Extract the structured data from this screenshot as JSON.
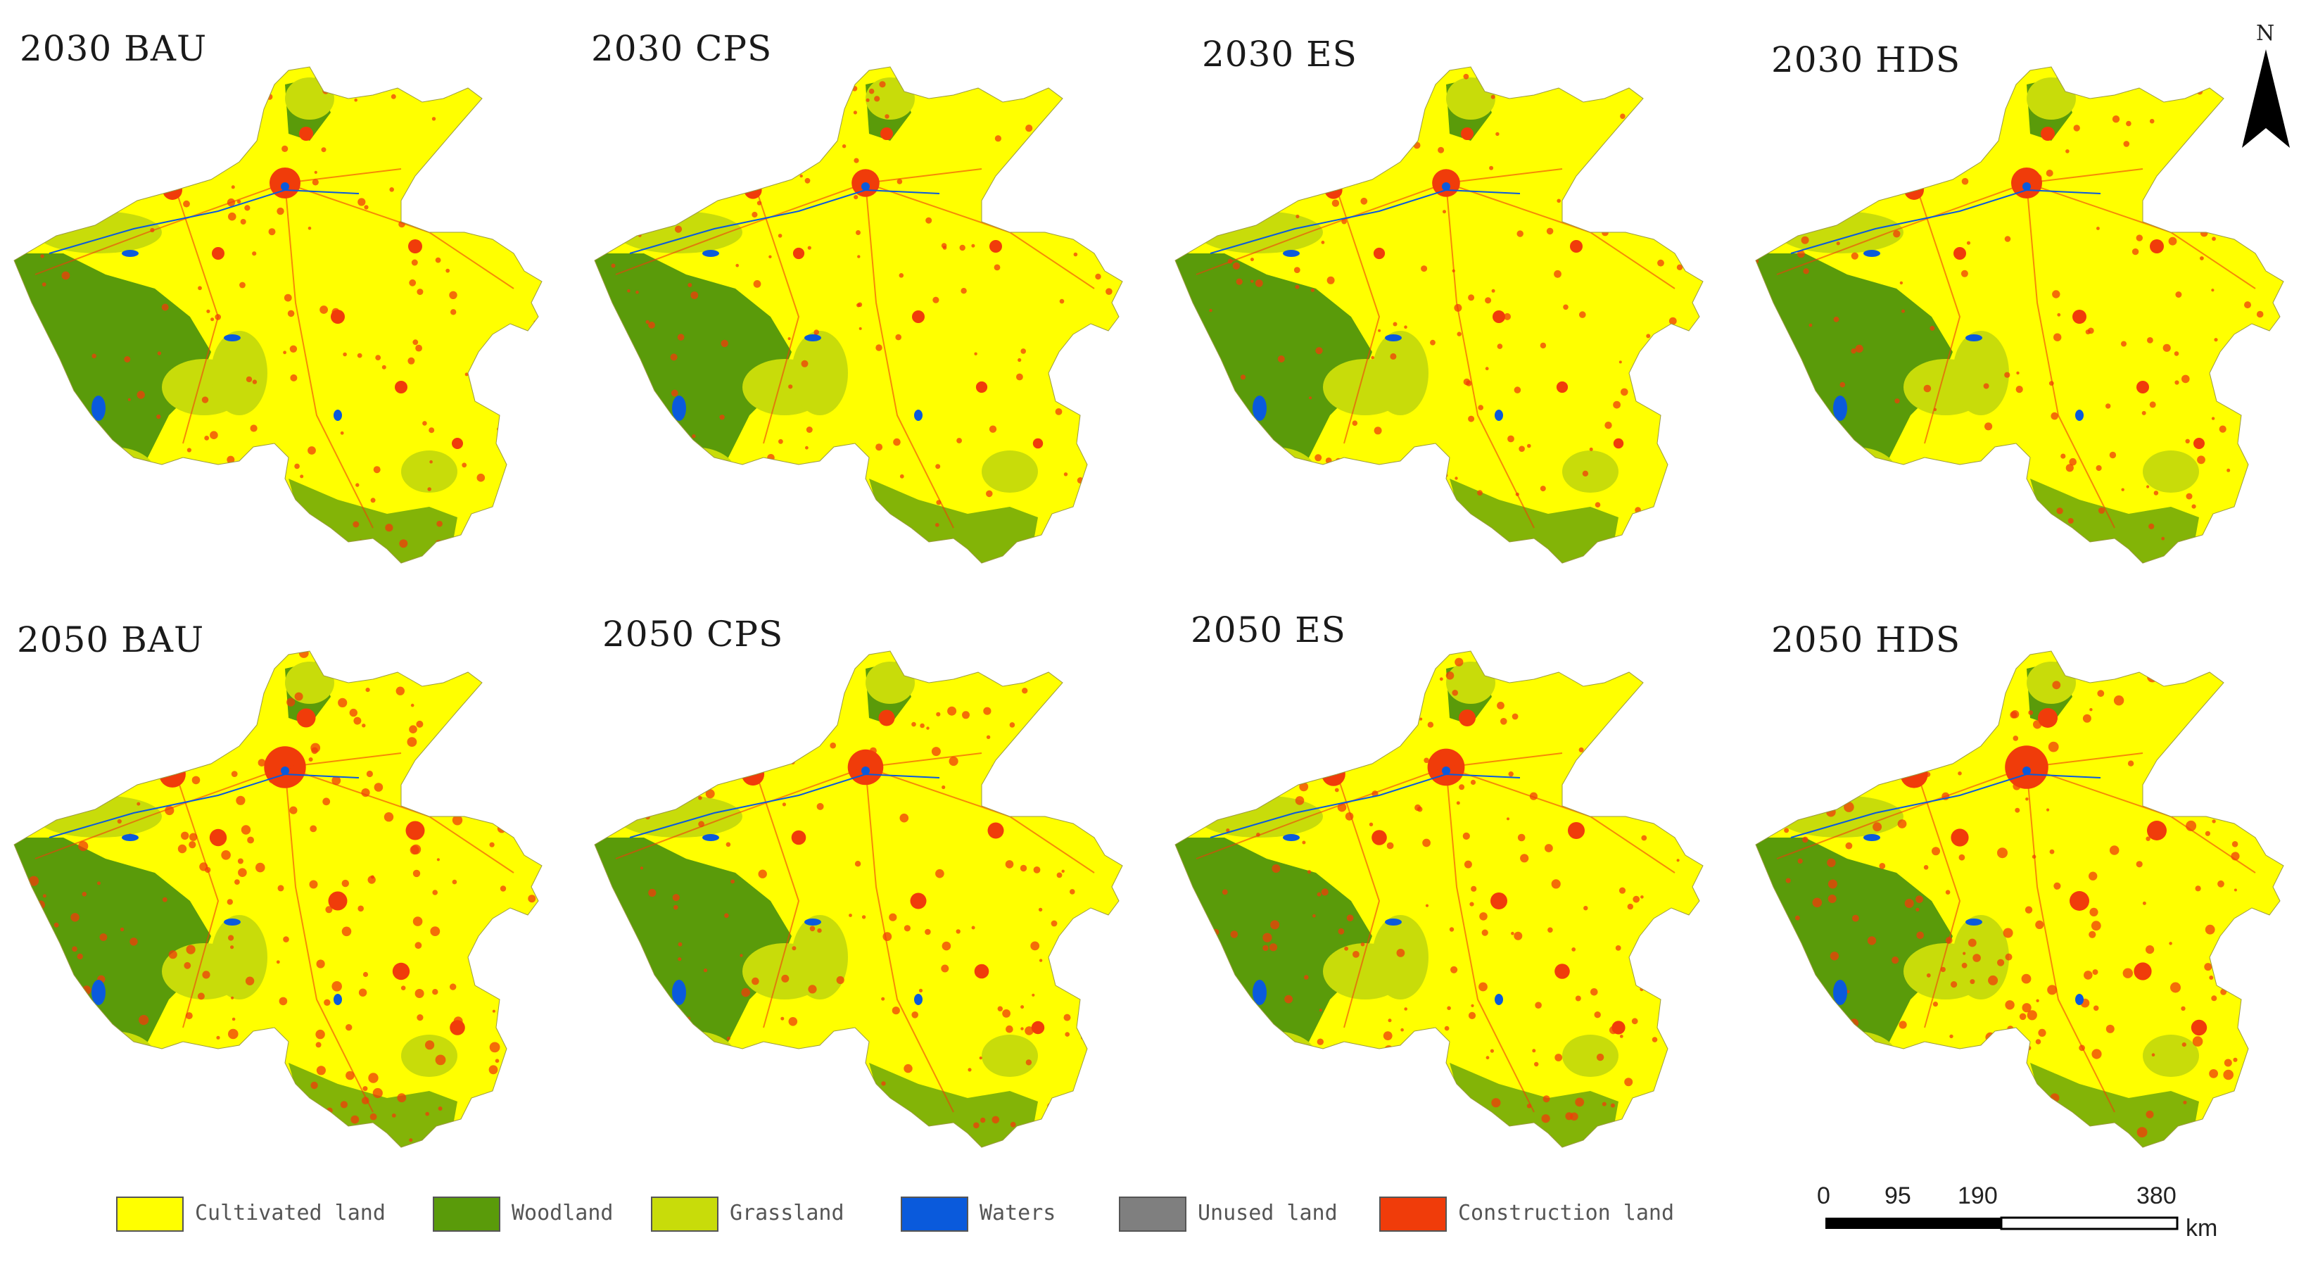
{
  "panels": [
    {
      "title": "2030 BAU",
      "scenario": "BAU",
      "year": "2030",
      "urban": 1.0
    },
    {
      "title": "2030 CPS",
      "scenario": "CPS",
      "year": "2030",
      "urban": 0.9
    },
    {
      "title": "2030 ES",
      "scenario": "ES",
      "year": "2030",
      "urban": 0.9
    },
    {
      "title": "2030 HDS",
      "scenario": "HDS",
      "year": "2030",
      "urban": 1.0
    },
    {
      "title": "2050 BAU",
      "scenario": "BAU",
      "year": "2050",
      "urban": 1.35
    },
    {
      "title": "2050 CPS",
      "scenario": "CPS",
      "year": "2050",
      "urban": 1.15
    },
    {
      "title": "2050 ES",
      "scenario": "ES",
      "year": "2050",
      "urban": 1.2
    },
    {
      "title": "2050 HDS",
      "scenario": "HDS",
      "year": "2050",
      "urban": 1.4
    }
  ],
  "legend": [
    {
      "label": "Cultivated land",
      "color": "#ffff00"
    },
    {
      "label": "Woodland",
      "color": "#5a9b0a"
    },
    {
      "label": "Grassland",
      "color": "#c8dc0a"
    },
    {
      "label": "Waters",
      "color": "#0a5adc"
    },
    {
      "label": "Unused land",
      "color": "#7f7f7f"
    },
    {
      "label": "Construction land",
      "color": "#f03c0a"
    }
  ],
  "scale_bar": {
    "ticks": [
      "0",
      "95",
      "190",
      "380"
    ],
    "unit": "km"
  },
  "north_arrow": {
    "label": "N"
  }
}
